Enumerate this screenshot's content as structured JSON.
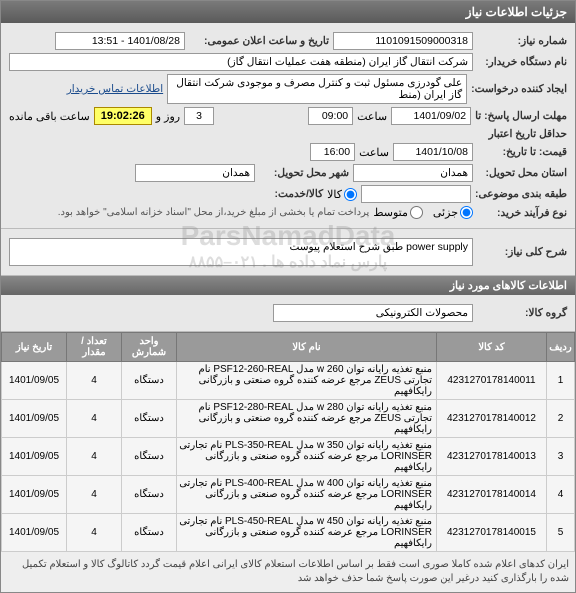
{
  "header": {
    "title": "جزئیات اطلاعات نیاز"
  },
  "info": {
    "req_no_lbl": "شماره نیاز:",
    "req_no": "1101091509000318",
    "pub_time_lbl": "تاریخ و ساعت اعلان عمومی:",
    "pub_time": "1401/08/28 - 13:51",
    "buyer_lbl": "نام دستگاه خریدار:",
    "buyer": "شرکت انتقال گاز ایران (منطقه هفت عملیات انتقال گاز)",
    "creator_lbl": "ایجاد کننده درخواست:",
    "creator": "علی گودرزی مسئول ثبت و کنترل مصرف و موجودی شرکت انتقال گاز ایران (منط",
    "contact_link": "اطلاعات تماس خریدار",
    "reply_deadline_lbl": "مهلت ارسال پاسخ: تا",
    "reply_date": "1401/09/02",
    "reply_time_lbl": "ساعت",
    "reply_time": "09:00",
    "day_lbl": "روز و",
    "days": "3",
    "remain_time": "19:02:26",
    "remain_lbl": "ساعت باقی مانده",
    "valid_lbl": "حداقل تاریخ اعتبار",
    "price_to_lbl": "قیمت: تا تاریخ:",
    "valid_date": "1401/10/08",
    "valid_time_lbl": "ساعت",
    "valid_time": "16:00",
    "province_lbl": "استان محل تحویل:",
    "province": "همدان",
    "city_lbl": "شهر محل تحویل:",
    "city": "همدان",
    "group_lbl": "طبقه بندی موضوعی:",
    "kala_lbl": "کالا",
    "khadamat_lbl": "کالا/خدمت:",
    "buy_type_lbl": "نوع فرآیند خرید:",
    "partial_lbl": "جزئی",
    "medium_lbl": "متوسط",
    "note": "پرداخت تمام یا بخشی از مبلغ خرید،از محل \"اسناد خزانه اسلامی\" خواهد بود.",
    "overall_lbl": "شرح کلی نیاز:",
    "overall": "power supply طبق شرح استعلام پیوست"
  },
  "subheader": {
    "title": "اطلاعات کالاهای مورد نیاز"
  },
  "goods_group": {
    "lbl": "گروه کالا:",
    "val": "محصولات الکترونیکی"
  },
  "table": {
    "cols": [
      "ردیف",
      "کد کالا",
      "نام کالا",
      "واحد شمارش",
      "تعداد / مقدار",
      "تاریخ نیاز"
    ],
    "rows": [
      [
        "1",
        "4231270178140011",
        "منبع تغذیه رایانه توان w 260 مدل PSF12-260-REAL نام تجارتی ZEUS مرجع عرضه کننده گروه صنعتی و بازرگانی رایکافهیم",
        "دستگاه",
        "4",
        "1401/09/05"
      ],
      [
        "2",
        "4231270178140012",
        "منبع تغذیه رایانه توان w 280 مدل PSF12-280-REAL نام تجارتی ZEUS مرجع عرضه کننده گروه صنعتی و بازرگانی رایکافهیم",
        "دستگاه",
        "4",
        "1401/09/05"
      ],
      [
        "3",
        "4231270178140013",
        "منبع تغذیه رایانه توان w 350 مدل PLS-350-REAL نام تجارتی LORINSER مرجع عرضه کننده گروه صنعتی و بازرگانی رایکافهیم",
        "دستگاه",
        "4",
        "1401/09/05"
      ],
      [
        "4",
        "4231270178140014",
        "منبع تغذیه رایانه توان w 400 مدل PLS-400-REAL نام تجارتی LORINSER مرجع عرضه کننده گروه صنعتی و بازرگانی رایکافهیم",
        "دستگاه",
        "4",
        "1401/09/05"
      ],
      [
        "5",
        "4231270178140015",
        "منبع تغذیه رایانه توان w 450 مدل PLS-450-REAL نام تجارتی LORINSER مرجع عرضه کننده گروه صنعتی و بازرگانی رایکافهیم",
        "دستگاه",
        "4",
        "1401/09/05"
      ]
    ]
  },
  "footer": {
    "text": "ایران کدهای اعلام شده کاملا صوری است فقط بر اساس اطلاعات استعلام کالای ایرانی اعلام قیمت گردد کاتالوگ کالا و استعلام تکمیل شده را بارگذاری کنید درغیر این صورت پاسخ شما حذف خواهد شد"
  },
  "watermark": {
    "line1": "ParsNamadData",
    "line2": "پارس نماد داده ها . ۰۲۱–۸۸۵۵"
  }
}
